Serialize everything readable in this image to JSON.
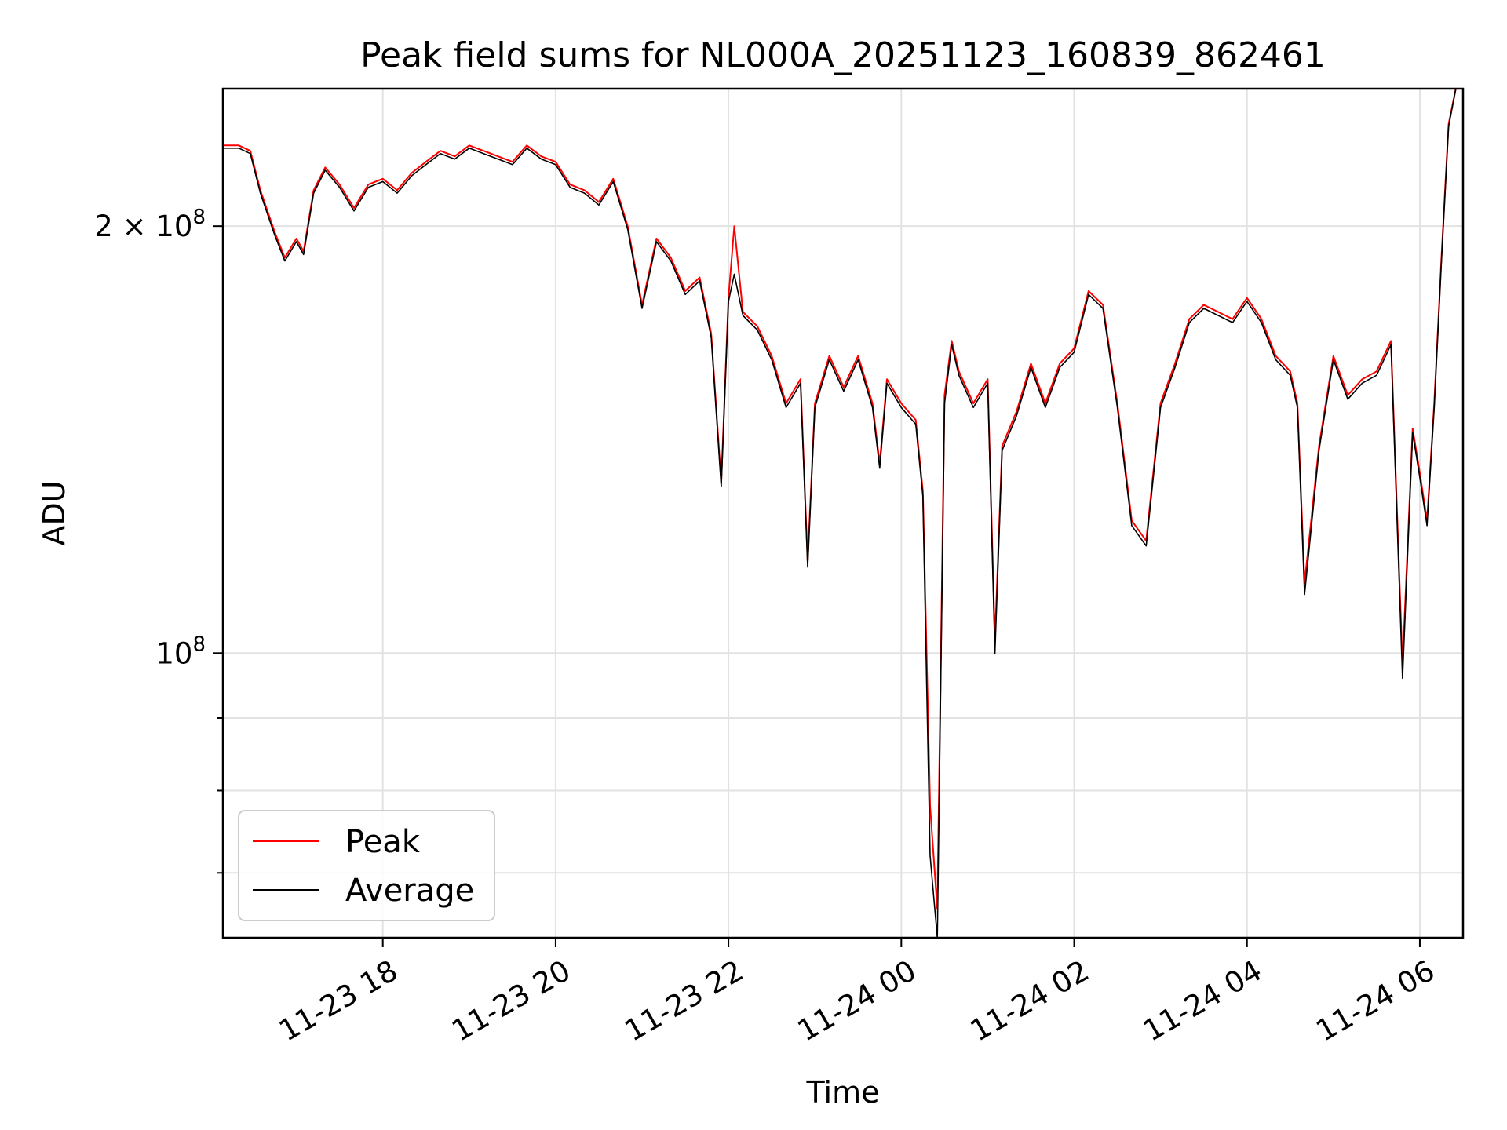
{
  "chart_data": {
    "type": "line",
    "title": "Peak field sums for NL000A_20251123_160839_862461",
    "xlabel": "Time",
    "ylabel": "ADU",
    "y_scale": "log",
    "ylim": [
      63000000,
      250000000
    ],
    "xlim": [
      "2025-11-23 16:09",
      "2025-11-24 06:30"
    ],
    "x_ticks": [
      {
        "value": "2025-11-23 18:00",
        "label": "11-23 18"
      },
      {
        "value": "2025-11-23 20:00",
        "label": "11-23 20"
      },
      {
        "value": "2025-11-23 22:00",
        "label": "11-23 22"
      },
      {
        "value": "2025-11-24 00:00",
        "label": "11-24 00"
      },
      {
        "value": "2025-11-24 02:00",
        "label": "11-24 02"
      },
      {
        "value": "2025-11-24 04:00",
        "label": "11-24 04"
      },
      {
        "value": "2025-11-24 06:00",
        "label": "11-24 06"
      }
    ],
    "y_ticks": [
      {
        "value": 200000000,
        "label": "2 × 10",
        "exp": "8"
      },
      {
        "value": 100000000,
        "label": "10",
        "exp": "8"
      }
    ],
    "y_minor_ticks": [
      70000000,
      80000000,
      90000000
    ],
    "grid": true,
    "legend": {
      "placement": "lower-left"
    },
    "series": [
      {
        "name": "Peak",
        "color": "#ff0000",
        "x": [
          "2025-11-23 16:09",
          "2025-11-23 16:20",
          "2025-11-23 16:28",
          "2025-11-23 16:35",
          "2025-11-23 16:45",
          "2025-11-23 16:52",
          "2025-11-23 17:00",
          "2025-11-23 17:05",
          "2025-11-23 17:12",
          "2025-11-23 17:20",
          "2025-11-23 17:30",
          "2025-11-23 17:40",
          "2025-11-23 17:50",
          "2025-11-23 18:00",
          "2025-11-23 18:10",
          "2025-11-23 18:20",
          "2025-11-23 18:30",
          "2025-11-23 18:40",
          "2025-11-23 18:50",
          "2025-11-23 19:00",
          "2025-11-23 19:10",
          "2025-11-23 19:20",
          "2025-11-23 19:30",
          "2025-11-23 19:40",
          "2025-11-23 19:50",
          "2025-11-23 20:00",
          "2025-11-23 20:10",
          "2025-11-23 20:20",
          "2025-11-23 20:30",
          "2025-11-23 20:40",
          "2025-11-23 20:50",
          "2025-11-23 21:00",
          "2025-11-23 21:10",
          "2025-11-23 21:20",
          "2025-11-23 21:30",
          "2025-11-23 21:40",
          "2025-11-23 21:48",
          "2025-11-23 21:55",
          "2025-11-23 22:00",
          "2025-11-23 22:04",
          "2025-11-23 22:10",
          "2025-11-23 22:20",
          "2025-11-23 22:30",
          "2025-11-23 22:40",
          "2025-11-23 22:50",
          "2025-11-23 22:55",
          "2025-11-23 23:00",
          "2025-11-23 23:10",
          "2025-11-23 23:20",
          "2025-11-23 23:30",
          "2025-11-23 23:40",
          "2025-11-23 23:45",
          "2025-11-23 23:50",
          "2025-11-24 00:00",
          "2025-11-24 00:10",
          "2025-11-24 00:15",
          "2025-11-24 00:20",
          "2025-11-24 00:25",
          "2025-11-24 00:30",
          "2025-11-24 00:35",
          "2025-11-24 00:40",
          "2025-11-24 00:50",
          "2025-11-24 01:00",
          "2025-11-24 01:05",
          "2025-11-24 01:10",
          "2025-11-24 01:20",
          "2025-11-24 01:30",
          "2025-11-24 01:40",
          "2025-11-24 01:50",
          "2025-11-24 02:00",
          "2025-11-24 02:10",
          "2025-11-24 02:20",
          "2025-11-24 02:30",
          "2025-11-24 02:40",
          "2025-11-24 02:50",
          "2025-11-24 03:00",
          "2025-11-24 03:10",
          "2025-11-24 03:20",
          "2025-11-24 03:30",
          "2025-11-24 03:40",
          "2025-11-24 03:50",
          "2025-11-24 04:00",
          "2025-11-24 04:10",
          "2025-11-24 04:20",
          "2025-11-24 04:30",
          "2025-11-24 04:35",
          "2025-11-24 04:40",
          "2025-11-24 04:50",
          "2025-11-24 05:00",
          "2025-11-24 05:10",
          "2025-11-24 05:20",
          "2025-11-24 05:30",
          "2025-11-24 05:40",
          "2025-11-24 05:48",
          "2025-11-24 05:55",
          "2025-11-24 06:00",
          "2025-11-24 06:05",
          "2025-11-24 06:10",
          "2025-11-24 06:15",
          "2025-11-24 06:20",
          "2025-11-24 06:25"
        ],
        "values": [
          228000000,
          228000000,
          226000000,
          212000000,
          198000000,
          190000000,
          196000000,
          192000000,
          212000000,
          220000000,
          214000000,
          206000000,
          214000000,
          216000000,
          212000000,
          218000000,
          222000000,
          226000000,
          224000000,
          228000000,
          226000000,
          224000000,
          222000000,
          228000000,
          224000000,
          222000000,
          214000000,
          212000000,
          208000000,
          216000000,
          200000000,
          176000000,
          196000000,
          190000000,
          180000000,
          184000000,
          168000000,
          132000000,
          178000000,
          200000000,
          174000000,
          170000000,
          162000000,
          150000000,
          156000000,
          116000000,
          150000000,
          162000000,
          154000000,
          162000000,
          150000000,
          136000000,
          156000000,
          150000000,
          146000000,
          130000000,
          78000000,
          66000000,
          152000000,
          166000000,
          158000000,
          150000000,
          156000000,
          102000000,
          140000000,
          148000000,
          160000000,
          150000000,
          160000000,
          164000000,
          180000000,
          176000000,
          150000000,
          124000000,
          120000000,
          150000000,
          160000000,
          172000000,
          176000000,
          174000000,
          172000000,
          178000000,
          172000000,
          162000000,
          158000000,
          150000000,
          112000000,
          140000000,
          162000000,
          152000000,
          156000000,
          158000000,
          166000000,
          98000000,
          144000000,
          134000000,
          124000000,
          150000000,
          190000000,
          236000000,
          250000000
        ]
      },
      {
        "name": "Average",
        "color": "#000000",
        "x": [
          "2025-11-23 16:09",
          "2025-11-23 16:20",
          "2025-11-23 16:28",
          "2025-11-23 16:35",
          "2025-11-23 16:45",
          "2025-11-23 16:52",
          "2025-11-23 17:00",
          "2025-11-23 17:05",
          "2025-11-23 17:12",
          "2025-11-23 17:20",
          "2025-11-23 17:30",
          "2025-11-23 17:40",
          "2025-11-23 17:50",
          "2025-11-23 18:00",
          "2025-11-23 18:10",
          "2025-11-23 18:20",
          "2025-11-23 18:30",
          "2025-11-23 18:40",
          "2025-11-23 18:50",
          "2025-11-23 19:00",
          "2025-11-23 19:10",
          "2025-11-23 19:20",
          "2025-11-23 19:30",
          "2025-11-23 19:40",
          "2025-11-23 19:50",
          "2025-11-23 20:00",
          "2025-11-23 20:10",
          "2025-11-23 20:20",
          "2025-11-23 20:30",
          "2025-11-23 20:40",
          "2025-11-23 20:50",
          "2025-11-23 21:00",
          "2025-11-23 21:10",
          "2025-11-23 21:20",
          "2025-11-23 21:30",
          "2025-11-23 21:40",
          "2025-11-23 21:48",
          "2025-11-23 21:55",
          "2025-11-23 22:00",
          "2025-11-23 22:04",
          "2025-11-23 22:10",
          "2025-11-23 22:20",
          "2025-11-23 22:30",
          "2025-11-23 22:40",
          "2025-11-23 22:50",
          "2025-11-23 22:55",
          "2025-11-23 23:00",
          "2025-11-23 23:10",
          "2025-11-23 23:20",
          "2025-11-23 23:30",
          "2025-11-23 23:40",
          "2025-11-23 23:45",
          "2025-11-23 23:50",
          "2025-11-24 00:00",
          "2025-11-24 00:10",
          "2025-11-24 00:15",
          "2025-11-24 00:20",
          "2025-11-24 00:25",
          "2025-11-24 00:30",
          "2025-11-24 00:35",
          "2025-11-24 00:40",
          "2025-11-24 00:50",
          "2025-11-24 01:00",
          "2025-11-24 01:05",
          "2025-11-24 01:10",
          "2025-11-24 01:20",
          "2025-11-24 01:30",
          "2025-11-24 01:40",
          "2025-11-24 01:50",
          "2025-11-24 02:00",
          "2025-11-24 02:10",
          "2025-11-24 02:20",
          "2025-11-24 02:30",
          "2025-11-24 02:40",
          "2025-11-24 02:50",
          "2025-11-24 03:00",
          "2025-11-24 03:10",
          "2025-11-24 03:20",
          "2025-11-24 03:30",
          "2025-11-24 03:40",
          "2025-11-24 03:50",
          "2025-11-24 04:00",
          "2025-11-24 04:10",
          "2025-11-24 04:20",
          "2025-11-24 04:30",
          "2025-11-24 04:35",
          "2025-11-24 04:40",
          "2025-11-24 04:50",
          "2025-11-24 05:00",
          "2025-11-24 05:10",
          "2025-11-24 05:20",
          "2025-11-24 05:30",
          "2025-11-24 05:40",
          "2025-11-24 05:48",
          "2025-11-24 05:55",
          "2025-11-24 06:00",
          "2025-11-24 06:05",
          "2025-11-24 06:10",
          "2025-11-24 06:15",
          "2025-11-24 06:20",
          "2025-11-24 06:25"
        ],
        "values": [
          227000000,
          227000000,
          225000000,
          211000000,
          197000000,
          189000000,
          195000000,
          191000000,
          211000000,
          219000000,
          213000000,
          205000000,
          213000000,
          215000000,
          211000000,
          217000000,
          221000000,
          225000000,
          223000000,
          227000000,
          225000000,
          223000000,
          221000000,
          227000000,
          223000000,
          221000000,
          213000000,
          211000000,
          207000000,
          215000000,
          199000000,
          175000000,
          195000000,
          189000000,
          179000000,
          183000000,
          167000000,
          131000000,
          177000000,
          185000000,
          173000000,
          169000000,
          161000000,
          149000000,
          155000000,
          115000000,
          149000000,
          161000000,
          153000000,
          161000000,
          149000000,
          135000000,
          155000000,
          149000000,
          145000000,
          129000000,
          72000000,
          63000000,
          150000000,
          165000000,
          157000000,
          149000000,
          155000000,
          100000000,
          139000000,
          147000000,
          159000000,
          149000000,
          159000000,
          163000000,
          179000000,
          175000000,
          149000000,
          123000000,
          119000000,
          149000000,
          159000000,
          171000000,
          175000000,
          173000000,
          171000000,
          177000000,
          171000000,
          161000000,
          157000000,
          149000000,
          110000000,
          139000000,
          161000000,
          151000000,
          155000000,
          157000000,
          165000000,
          96000000,
          143000000,
          133000000,
          123000000,
          149000000,
          189000000,
          235000000,
          250000000
        ]
      }
    ]
  }
}
